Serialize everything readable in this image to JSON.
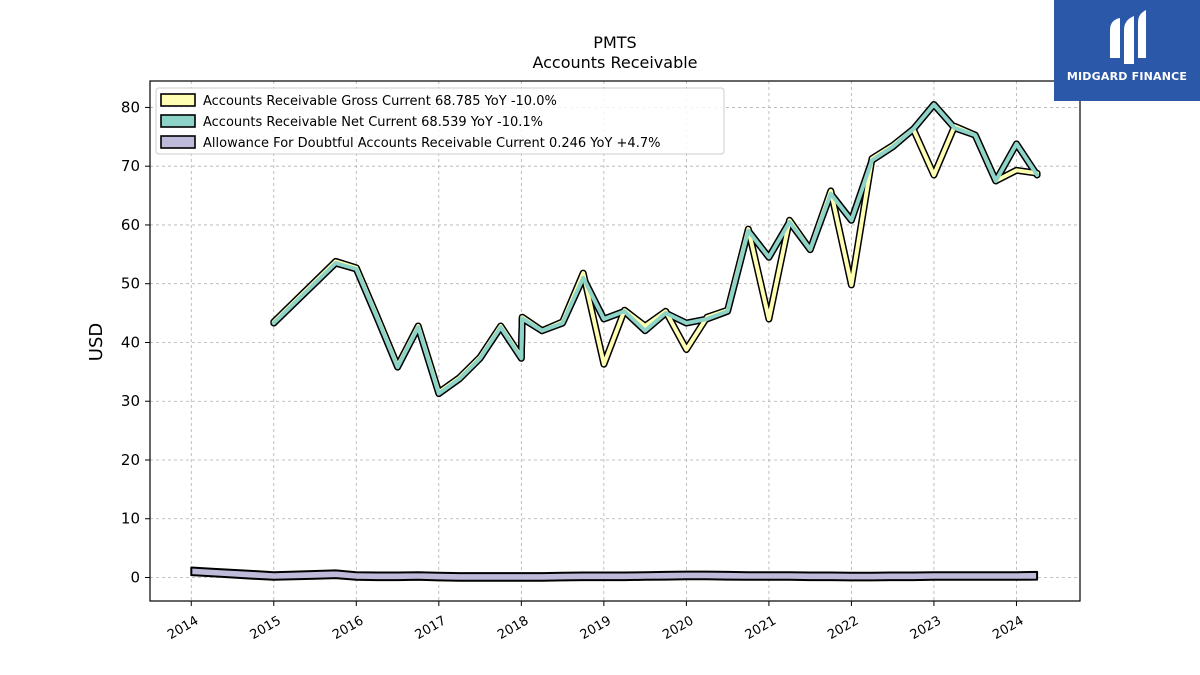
{
  "brand": {
    "name": "MIDGARD FINANCE",
    "bg_color": "#2b58a8"
  },
  "chart_data": {
    "type": "line",
    "title": "PMTS",
    "subtitle": "Accounts Receivable",
    "xlabel": "",
    "ylabel": "USD",
    "xlim": [
      2013.5,
      2024.77
    ],
    "ylim": [
      -4,
      84.5
    ],
    "yticks": [
      0,
      10,
      20,
      30,
      40,
      50,
      60,
      70,
      80
    ],
    "xticks": [
      "2014",
      "2015",
      "2016",
      "2017",
      "2018",
      "2019",
      "2020",
      "2021",
      "2022",
      "2023",
      "2024"
    ],
    "grid": true,
    "legend_position": "top-left",
    "series": [
      {
        "name": "Accounts Receivable Gross Current",
        "legend_label": "Accounts Receivable Gross Current  68.785 YoY -10.0%",
        "color": "#ffffb3",
        "x": [
          2015.0,
          2015.75,
          2016.0,
          2016.25,
          2016.5,
          2016.75,
          2017.0,
          2017.25,
          2017.5,
          2017.75,
          2018.0,
          2018.01,
          2018.25,
          2018.5,
          2018.75,
          2019.0,
          2019.25,
          2019.5,
          2019.75,
          2020.0,
          2020.25,
          2020.5,
          2020.75,
          2021.0,
          2021.25,
          2021.5,
          2021.75,
          2022.0,
          2022.25,
          2022.5,
          2022.75,
          2023.0,
          2023.25,
          2023.5,
          2023.75,
          2024.0,
          2024.25
        ],
        "values": [
          43.5,
          53.8,
          52.7,
          44.5,
          36.0,
          42.8,
          31.5,
          34.0,
          37.5,
          42.8,
          37.5,
          44.3,
          42.0,
          43.5,
          51.8,
          36.3,
          45.5,
          42.8,
          45.3,
          38.8,
          44.3,
          45.5,
          59.3,
          44.0,
          60.8,
          55.8,
          65.8,
          49.8,
          71.3,
          73.5,
          76.3,
          68.5,
          76.8,
          75.3,
          67.5,
          69.3,
          68.8
        ]
      },
      {
        "name": "Accounts Receivable Net Current",
        "legend_label": "Accounts Receivable Net Current  68.539 YoY -10.1%",
        "color": "#8dd3c7",
        "x": [
          2015.0,
          2015.75,
          2016.0,
          2016.25,
          2016.5,
          2016.75,
          2017.0,
          2017.25,
          2017.5,
          2017.75,
          2018.0,
          2018.01,
          2018.25,
          2018.5,
          2018.75,
          2019.0,
          2019.25,
          2019.5,
          2019.75,
          2020.0,
          2020.25,
          2020.5,
          2020.75,
          2021.0,
          2021.25,
          2021.5,
          2021.75,
          2022.0,
          2022.25,
          2022.5,
          2022.75,
          2023.0,
          2023.25,
          2023.5,
          2023.75,
          2024.0,
          2024.25
        ],
        "values": [
          43.3,
          53.5,
          52.5,
          44.3,
          35.8,
          42.6,
          31.3,
          33.8,
          37.3,
          42.6,
          37.3,
          44.1,
          42.0,
          43.3,
          51.0,
          44.0,
          45.3,
          42.0,
          45.0,
          43.3,
          44.0,
          45.3,
          59.0,
          54.5,
          60.5,
          55.8,
          65.3,
          60.8,
          71.0,
          73.3,
          76.3,
          80.5,
          76.5,
          75.3,
          67.5,
          73.8,
          68.5
        ]
      },
      {
        "name": "Allowance For Doubtful Accounts Receivable Current",
        "legend_label": "Allowance For Doubtful Accounts Receivable Current  0.246 YoY +4.7%",
        "color": "#bebada",
        "x": [
          2014.0,
          2014.25,
          2014.5,
          2014.75,
          2015.0,
          2015.25,
          2015.5,
          2015.75,
          2016.0,
          2016.25,
          2016.5,
          2016.75,
          2017.0,
          2017.25,
          2017.5,
          2017.75,
          2018.0,
          2018.25,
          2018.5,
          2018.75,
          2019.0,
          2019.25,
          2019.5,
          2019.75,
          2020.0,
          2020.25,
          2020.5,
          2020.75,
          2021.0,
          2021.25,
          2021.5,
          2021.75,
          2022.0,
          2022.25,
          2022.5,
          2022.75,
          2023.0,
          2023.25,
          2023.5,
          2023.75,
          2024.0,
          2024.25
        ],
        "values": [
          1.0,
          0.8,
          0.6,
          0.4,
          0.2,
          0.3,
          0.4,
          0.5,
          0.2,
          0.15,
          0.15,
          0.2,
          0.1,
          0.05,
          0.05,
          0.05,
          0.05,
          0.05,
          0.1,
          0.15,
          0.15,
          0.15,
          0.2,
          0.25,
          0.3,
          0.3,
          0.25,
          0.2,
          0.2,
          0.2,
          0.15,
          0.15,
          0.1,
          0.1,
          0.15,
          0.15,
          0.2,
          0.2,
          0.2,
          0.2,
          0.2,
          0.25
        ]
      }
    ]
  }
}
